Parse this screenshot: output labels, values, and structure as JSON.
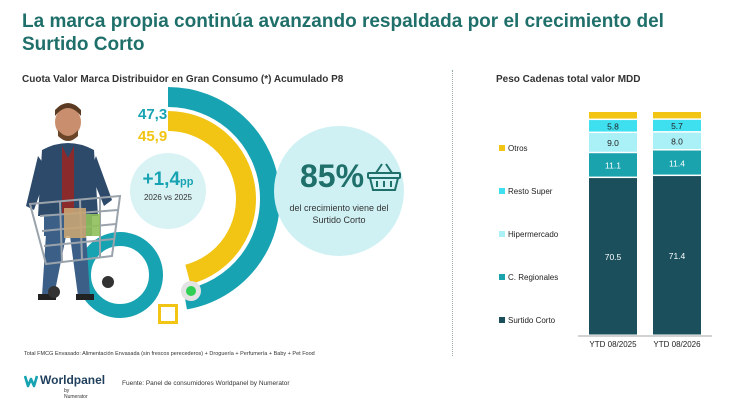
{
  "header": {
    "title": "La marca propia continúa avanzando respaldada por el crecimiento del Surtido Corto"
  },
  "left": {
    "subtitle": "Cuota Valor Marca Distribuidor en Gran Consumo (*) Acumulado P8",
    "value_current": "47,3",
    "value_previous": "45,9",
    "delta": "+1,4",
    "delta_unit": "pp",
    "delta_caption": "2026 vs 2025",
    "highlight_pct": "85%",
    "highlight_text": "del crecimiento viene del Surtido Corto",
    "footnote": "Total FMCG Envasado: Alimentación Envasada (sin frescos perecederos) + Droguería + Perfumería + Baby + Pet Food",
    "colors": {
      "teal": "#18a3b2",
      "yellow": "#f2c414",
      "light": "#cff1f4"
    }
  },
  "right": {
    "subtitle": "Peso Cadenas total valor MDD"
  },
  "footer": {
    "source": "Fuente: Panel de consumidores Worldpanel by Numerator",
    "logo_name": "Worldpanel",
    "logo_by": "by Numerator"
  },
  "chart_data": [
    {
      "type": "pie",
      "title": "Cuota Valor Marca Distribuidor en Gran Consumo (*) Acumulado P8",
      "series": [
        {
          "name": "2026",
          "value": 47.3,
          "label": "47,3",
          "color": "#18a3b2"
        },
        {
          "name": "2025",
          "value": 45.9,
          "label": "45,9",
          "color": "#f2c414"
        }
      ]
    },
    {
      "type": "bar",
      "stacked": true,
      "title": "Peso Cadenas total valor MDD",
      "categories": [
        "YTD 08/2025",
        "YTD 08/2026"
      ],
      "series": [
        {
          "name": "Surtido Corto",
          "values": [
            70.5,
            71.4
          ],
          "labels": [
            "70.5",
            "71.4"
          ],
          "color": "#1b4f5c",
          "text": "#ffffff"
        },
        {
          "name": "C. Regionales",
          "values": [
            11.1,
            11.4
          ],
          "labels": [
            "11.1",
            "11.4"
          ],
          "color": "#1aa3ad",
          "text": "#ffffff"
        },
        {
          "name": "Hipermercado",
          "values": [
            9.0,
            8.0
          ],
          "labels": [
            "9.0",
            "8.0"
          ],
          "color": "#a9f0f7",
          "text": "#222222"
        },
        {
          "name": "Resto Super",
          "values": [
            5.8,
            5.7
          ],
          "labels": [
            "5.8",
            "5.7"
          ],
          "color": "#3ee0f0",
          "text": "#222222"
        },
        {
          "name": "Otros",
          "values": [
            3.6,
            3.5
          ],
          "labels": [
            "",
            ""
          ],
          "color": "#f2c414",
          "text": "#222222"
        }
      ],
      "ylim": [
        0,
        100
      ],
      "legend": "left"
    }
  ]
}
